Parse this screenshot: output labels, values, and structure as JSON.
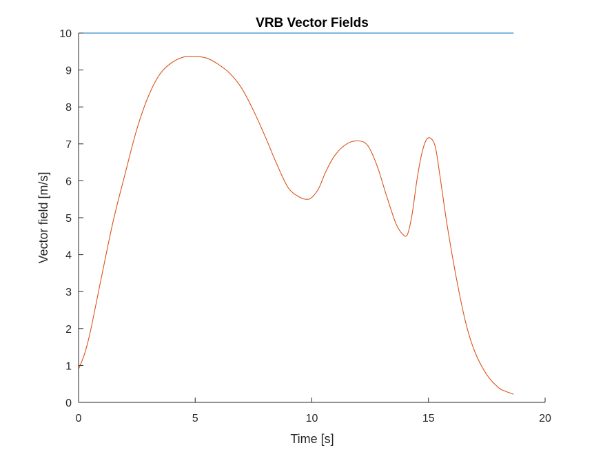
{
  "chart_data": {
    "type": "line",
    "title": "VRB Vector Fields",
    "xlabel": "Time [s]",
    "ylabel": "Vector field [m/s]",
    "xlim": [
      0,
      20
    ],
    "ylim": [
      0,
      10
    ],
    "xticks": [
      0,
      5,
      10,
      15,
      20
    ],
    "yticks": [
      0,
      1,
      2,
      3,
      4,
      5,
      6,
      7,
      8,
      9,
      10
    ],
    "grid": false,
    "series": [
      {
        "color": "#0072BD",
        "x": [
          0,
          18.65
        ],
        "y": [
          10,
          10
        ]
      },
      {
        "color": "#D95319",
        "x": [
          0,
          0.25,
          0.5,
          1.0,
          1.5,
          2.0,
          2.5,
          3.0,
          3.5,
          4.0,
          4.5,
          5.0,
          5.5,
          6.0,
          6.5,
          7.0,
          7.5,
          8.0,
          8.5,
          9.0,
          9.5,
          9.8,
          10.0,
          10.3,
          10.6,
          11.0,
          11.5,
          12.0,
          12.4,
          12.8,
          13.2,
          13.6,
          13.9,
          14.1,
          14.3,
          14.5,
          14.7,
          14.9,
          15.1,
          15.3,
          15.5,
          15.8,
          16.2,
          16.6,
          17.0,
          17.5,
          18.0,
          18.3,
          18.65
        ],
        "y": [
          0.9,
          1.3,
          1.9,
          3.45,
          4.95,
          6.2,
          7.4,
          8.3,
          8.9,
          9.2,
          9.35,
          9.37,
          9.32,
          9.15,
          8.9,
          8.5,
          7.9,
          7.2,
          6.45,
          5.8,
          5.55,
          5.5,
          5.55,
          5.8,
          6.25,
          6.7,
          7.0,
          7.08,
          6.95,
          6.4,
          5.6,
          4.85,
          4.55,
          4.55,
          5.1,
          6.0,
          6.7,
          7.1,
          7.15,
          6.9,
          6.1,
          4.8,
          3.35,
          2.15,
          1.35,
          0.75,
          0.4,
          0.3,
          0.22
        ]
      }
    ]
  }
}
